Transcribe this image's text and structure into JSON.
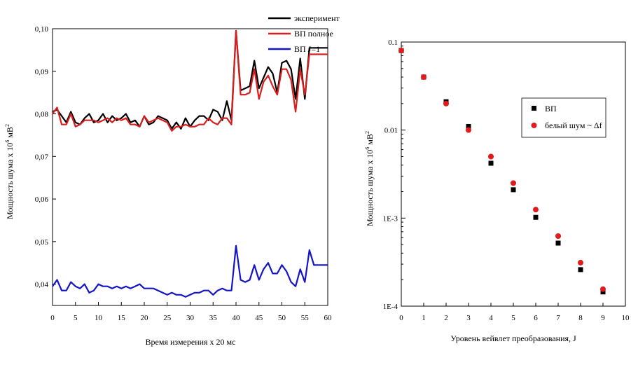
{
  "colors": {
    "experiment": "#000000",
    "vp_full": "#d91e1e",
    "vp_j1": "#1414c8",
    "vp_markers": "#000000",
    "white_noise": "#e31a1a",
    "axes": "#000000"
  },
  "chart_data": [
    {
      "type": "line",
      "xlabel": "Время измерения х 20 мс",
      "ylabel": "Мощность шума х 10",
      "ylabel_sup": "6",
      "ylabel_unit": " мВ",
      "ylabel_unit_sup": "2",
      "xlim": [
        0,
        60
      ],
      "ylim": [
        0.035,
        0.1
      ],
      "x_ticks": [
        "0",
        "5",
        "10",
        "15",
        "20",
        "25",
        "30",
        "35",
        "40",
        "45",
        "50",
        "55",
        "60"
      ],
      "y_ticks": [
        "0,04",
        "0,05",
        "0,06",
        "0,07",
        "0,08",
        "0,09",
        "0,10"
      ],
      "legend": [
        "эксперимент",
        "ВП полное",
        "ВП  J=1"
      ],
      "legend_position": "top-right",
      "series": [
        {
          "name": "эксперимент",
          "x": [
            0,
            1,
            2,
            3,
            4,
            5,
            6,
            7,
            8,
            9,
            10,
            11,
            12,
            13,
            14,
            15,
            16,
            17,
            18,
            19,
            20,
            21,
            22,
            23,
            24,
            25,
            26,
            27,
            28,
            29,
            30,
            31,
            32,
            33,
            34,
            35,
            36,
            37,
            38,
            39,
            40,
            41,
            42,
            43,
            44,
            45,
            46,
            47,
            48,
            49,
            50,
            51,
            52,
            53,
            54,
            55,
            56,
            57,
            58,
            59,
            60
          ],
          "y": [
            0.0805,
            0.081,
            0.0795,
            0.078,
            0.0805,
            0.078,
            0.0775,
            0.079,
            0.08,
            0.078,
            0.0785,
            0.08,
            0.078,
            0.0795,
            0.0785,
            0.079,
            0.08,
            0.078,
            0.0785,
            0.077,
            0.0795,
            0.0775,
            0.078,
            0.0795,
            0.079,
            0.0785,
            0.0765,
            0.078,
            0.0765,
            0.079,
            0.077,
            0.0785,
            0.0795,
            0.0795,
            0.0785,
            0.081,
            0.0805,
            0.0785,
            0.083,
            0.0785,
            0.0995,
            0.0855,
            0.086,
            0.0865,
            0.0925,
            0.086,
            0.0885,
            0.091,
            0.0895,
            0.085,
            0.092,
            0.0925,
            0.0905,
            0.0835,
            0.093,
            0.0835,
            0.0955,
            0.0955,
            0.0955,
            0.0955,
            0.0955
          ]
        },
        {
          "name": "ВП полное",
          "x": [
            0,
            1,
            2,
            3,
            4,
            5,
            6,
            7,
            8,
            9,
            10,
            11,
            12,
            13,
            14,
            15,
            16,
            17,
            18,
            19,
            20,
            21,
            22,
            23,
            24,
            25,
            26,
            27,
            28,
            29,
            30,
            31,
            32,
            33,
            34,
            35,
            36,
            37,
            38,
            39,
            40,
            41,
            42,
            43,
            44,
            45,
            46,
            47,
            48,
            49,
            50,
            51,
            52,
            53,
            54,
            55,
            56,
            57,
            58,
            59,
            60
          ],
          "y": [
            0.08,
            0.0815,
            0.0775,
            0.0775,
            0.08,
            0.077,
            0.0775,
            0.0785,
            0.0785,
            0.0785,
            0.078,
            0.0785,
            0.079,
            0.078,
            0.079,
            0.0785,
            0.079,
            0.0775,
            0.0775,
            0.077,
            0.0795,
            0.078,
            0.0785,
            0.079,
            0.0785,
            0.078,
            0.076,
            0.077,
            0.077,
            0.0775,
            0.077,
            0.077,
            0.0775,
            0.0775,
            0.079,
            0.078,
            0.0775,
            0.079,
            0.079,
            0.0775,
            0.0995,
            0.0845,
            0.0845,
            0.085,
            0.0905,
            0.0835,
            0.0875,
            0.089,
            0.0865,
            0.0845,
            0.0905,
            0.0905,
            0.088,
            0.0805,
            0.0905,
            0.0845,
            0.094,
            0.094,
            0.094,
            0.094,
            0.094
          ]
        },
        {
          "name": "ВП  J=1",
          "x": [
            0,
            1,
            2,
            3,
            4,
            5,
            6,
            7,
            8,
            9,
            10,
            11,
            12,
            13,
            14,
            15,
            16,
            17,
            18,
            19,
            20,
            21,
            22,
            23,
            24,
            25,
            26,
            27,
            28,
            29,
            30,
            31,
            32,
            33,
            34,
            35,
            36,
            37,
            38,
            39,
            40,
            41,
            42,
            43,
            44,
            45,
            46,
            47,
            48,
            49,
            50,
            51,
            52,
            53,
            54,
            55,
            56,
            57,
            58,
            59,
            60
          ],
          "y": [
            0.0395,
            0.041,
            0.0385,
            0.0385,
            0.0405,
            0.0395,
            0.039,
            0.04,
            0.038,
            0.0385,
            0.04,
            0.0395,
            0.0395,
            0.039,
            0.0395,
            0.039,
            0.0395,
            0.039,
            0.0395,
            0.04,
            0.039,
            0.039,
            0.039,
            0.0385,
            0.038,
            0.0375,
            0.038,
            0.0375,
            0.0375,
            0.037,
            0.0375,
            0.038,
            0.038,
            0.0385,
            0.0385,
            0.0375,
            0.0385,
            0.039,
            0.0385,
            0.0385,
            0.049,
            0.041,
            0.0405,
            0.041,
            0.0445,
            0.041,
            0.0435,
            0.045,
            0.0425,
            0.0425,
            0.0445,
            0.043,
            0.0405,
            0.0395,
            0.0435,
            0.0405,
            0.048,
            0.0445,
            0.0445,
            0.0445,
            0.0445
          ]
        }
      ]
    },
    {
      "type": "scatter",
      "y_scale": "log",
      "xlabel": "Уровень вейвлет преобразования, J",
      "ylabel": "Мощность шума х 10",
      "ylabel_sup": "6",
      "ylabel_unit": " мВ",
      "ylabel_unit_sup": "2",
      "xlim": [
        0,
        10
      ],
      "ylim": [
        0.0001,
        0.1
      ],
      "x_ticks": [
        "0",
        "1",
        "2",
        "3",
        "4",
        "5",
        "6",
        "7",
        "8",
        "9",
        "10"
      ],
      "y_ticks": [
        "1E-4",
        "1E-3",
        "0.01",
        "0.1"
      ],
      "legend": [
        "ВП",
        "белый шум ~ Δf"
      ],
      "legend_position": "center-right",
      "series": [
        {
          "name": "ВП",
          "marker": "square",
          "x": [
            0,
            1,
            2,
            3,
            4,
            5,
            6,
            7,
            8,
            9
          ],
          "y": [
            0.08,
            0.04,
            0.021,
            0.011,
            0.0042,
            0.0021,
            0.00102,
            0.00052,
            0.00026,
            0.000145
          ]
        },
        {
          "name": "белый шум ~ Δf",
          "marker": "circle",
          "x": [
            0,
            1,
            2,
            3,
            4,
            5,
            6,
            7,
            8,
            9
          ],
          "y": [
            0.08,
            0.04,
            0.02,
            0.01,
            0.005,
            0.0025,
            0.00125,
            0.000625,
            0.000312,
            0.000156
          ]
        }
      ]
    }
  ]
}
